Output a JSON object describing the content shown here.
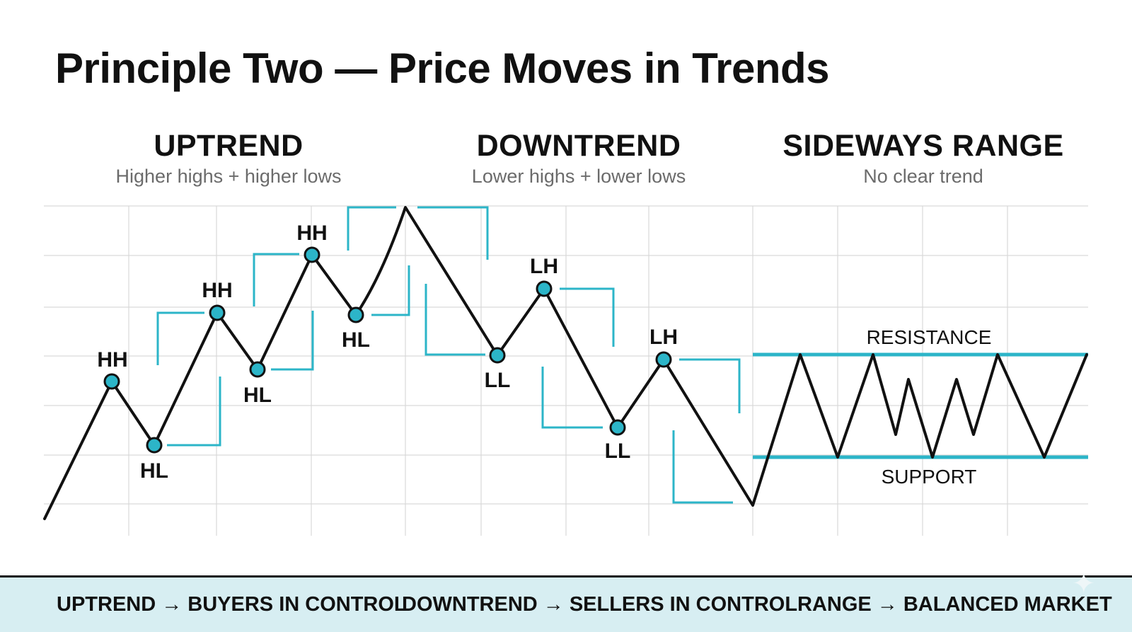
{
  "title": "Principle Two — Price Moves in Trends",
  "sections": {
    "uptrend": {
      "heading": "UPTREND",
      "subheading": "Higher highs + higher lows"
    },
    "downtrend": {
      "heading": "DOWNTREND",
      "subheading": "Lower highs + lower lows"
    },
    "sideways": {
      "heading": "SIDEWAYS RANGE",
      "subheading": "No clear trend"
    }
  },
  "labels": {
    "hh1": "HH",
    "hl1": "HL",
    "hh2": "HH",
    "hl2": "HL",
    "hh3": "HH",
    "hl3": "HL",
    "lh1": "LH",
    "ll1": "LL",
    "lh2": "LH",
    "ll2": "LL"
  },
  "levels": {
    "resistance": "RESISTANCE",
    "support": "SUPPORT"
  },
  "footer": {
    "uptrend": "UPTREND → BUYERS IN CONTROL",
    "downtrend": "DOWNTREND → SELLERS IN CONTROL",
    "range": "RANGE → BALANCED MARKET"
  },
  "colors": {
    "accent": "#2cb5c8",
    "line": "#111111",
    "grid": "#d9d9d9",
    "footer_bg": "#d7eef2"
  },
  "icons": {
    "watermark": "sparkle-icon"
  }
}
